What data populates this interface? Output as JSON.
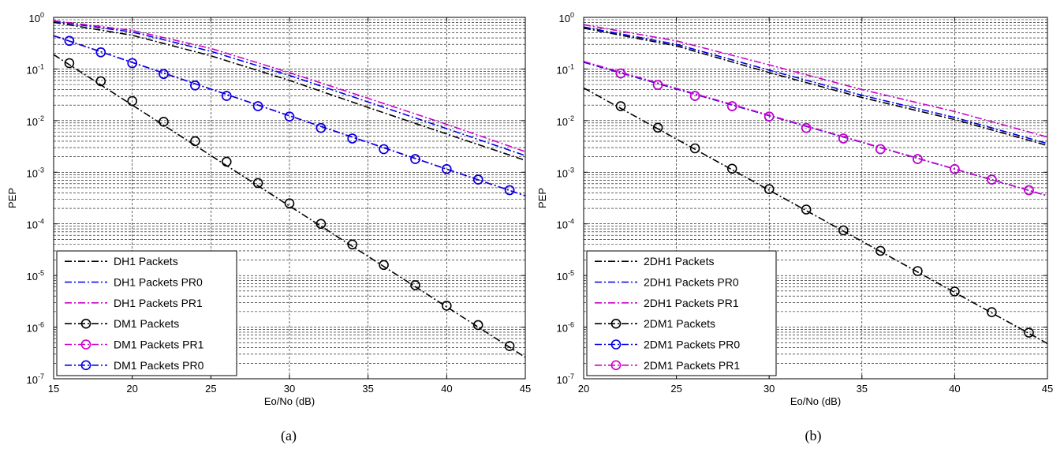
{
  "chart_data": [
    {
      "type": "line",
      "caption": "(a)",
      "xlabel": "Eo/No (dB)",
      "ylabel": "PEP",
      "xlim": [
        15,
        45
      ],
      "ylim": [
        1e-07,
        1
      ],
      "yscale": "log",
      "grid": true,
      "legend_position": "bottom-left",
      "xticks": [
        "15",
        "20",
        "25",
        "30",
        "35",
        "40",
        "45"
      ],
      "yticks": [
        {
          "base": "10",
          "exp": "0"
        },
        {
          "base": "10",
          "exp": "-1"
        },
        {
          "base": "10",
          "exp": "-2"
        },
        {
          "base": "10",
          "exp": "-3"
        },
        {
          "base": "10",
          "exp": "-4"
        },
        {
          "base": "10",
          "exp": "-5"
        },
        {
          "base": "10",
          "exp": "-6"
        },
        {
          "base": "10",
          "exp": "-7"
        }
      ],
      "series": [
        {
          "name": "DH1 Packets",
          "color": "#000000",
          "marker": "none",
          "x": [
            15,
            20,
            25,
            30,
            35,
            40,
            45
          ],
          "y": [
            0.8,
            0.45,
            0.18,
            0.06,
            0.018,
            0.0055,
            0.0017
          ]
        },
        {
          "name": "DH1 Packets PR0",
          "color": "#0000e6",
          "marker": "none",
          "x": [
            15,
            20,
            25,
            30,
            35,
            40,
            45
          ],
          "y": [
            0.84,
            0.52,
            0.22,
            0.075,
            0.023,
            0.007,
            0.0021
          ]
        },
        {
          "name": "DH1 Packets PR1",
          "color": "#cc00cc",
          "marker": "none",
          "x": [
            15,
            20,
            25,
            30,
            35,
            40,
            45
          ],
          "y": [
            0.86,
            0.56,
            0.25,
            0.085,
            0.027,
            0.0085,
            0.0025
          ]
        },
        {
          "name": "DM1 Packets",
          "color": "#000000",
          "marker": "circle",
          "x": [
            16,
            18,
            20,
            22,
            24,
            26,
            28,
            30,
            32,
            34,
            36,
            38,
            40,
            42,
            44
          ],
          "y": [
            0.13,
            0.058,
            0.024,
            0.0095,
            0.004,
            0.0016,
            0.00062,
            0.00025,
            0.0001,
            4e-05,
            1.6e-05,
            6.5e-06,
            2.6e-06,
            1.1e-06,
            4.3e-07
          ],
          "line_x": [
            15,
            45
          ],
          "line_y": [
            0.19,
            2.6e-07
          ]
        },
        {
          "name": "DM1 Packets PR1",
          "color": "#cc00cc",
          "marker": "circle",
          "x": [
            16,
            18,
            20,
            22,
            24,
            26,
            28,
            30,
            32,
            34,
            36,
            38,
            40,
            42,
            44
          ],
          "y": [
            0.35,
            0.21,
            0.13,
            0.08,
            0.048,
            0.03,
            0.019,
            0.012,
            0.0072,
            0.0045,
            0.0028,
            0.0018,
            0.00115,
            0.00072,
            0.00045
          ],
          "line_x": [
            15,
            45
          ],
          "line_y": [
            0.44,
            0.00035
          ]
        },
        {
          "name": "DM1 Packets PR0",
          "color": "#0000e6",
          "marker": "circle",
          "x": [
            16,
            18,
            20,
            22,
            24,
            26,
            28,
            30,
            32,
            34,
            36,
            38,
            40,
            42,
            44
          ],
          "y": [
            0.35,
            0.21,
            0.13,
            0.08,
            0.048,
            0.03,
            0.019,
            0.012,
            0.0072,
            0.0045,
            0.0028,
            0.0018,
            0.00115,
            0.00072,
            0.00045
          ],
          "line_x": [
            15,
            45
          ],
          "line_y": [
            0.44,
            0.00035
          ]
        }
      ]
    },
    {
      "type": "line",
      "caption": "(b)",
      "xlabel": "Eo/No (dB)",
      "ylabel": "PEP",
      "xlim": [
        20,
        45
      ],
      "ylim": [
        1e-07,
        1
      ],
      "yscale": "log",
      "grid": true,
      "legend_position": "bottom-left",
      "xticks": [
        "20",
        "25",
        "30",
        "35",
        "40",
        "45"
      ],
      "yticks": [
        {
          "base": "10",
          "exp": "0"
        },
        {
          "base": "10",
          "exp": "-1"
        },
        {
          "base": "10",
          "exp": "-2"
        },
        {
          "base": "10",
          "exp": "-3"
        },
        {
          "base": "10",
          "exp": "-4"
        },
        {
          "base": "10",
          "exp": "-5"
        },
        {
          "base": "10",
          "exp": "-6"
        },
        {
          "base": "10",
          "exp": "-7"
        }
      ],
      "series": [
        {
          "name": "2DH1 Packets",
          "color": "#000000",
          "marker": "none",
          "x": [
            20,
            25,
            30,
            35,
            40,
            45
          ],
          "y": [
            0.62,
            0.28,
            0.085,
            0.028,
            0.0105,
            0.0033
          ]
        },
        {
          "name": "2DH1 Packets PR0",
          "color": "#0000e6",
          "marker": "none",
          "x": [
            20,
            25,
            30,
            35,
            40,
            45
          ],
          "y": [
            0.65,
            0.3,
            0.095,
            0.031,
            0.0115,
            0.0036
          ]
        },
        {
          "name": "2DH1 Packets PR1",
          "color": "#cc00cc",
          "marker": "none",
          "x": [
            20,
            25,
            30,
            35,
            40,
            45
          ],
          "y": [
            0.72,
            0.35,
            0.12,
            0.04,
            0.015,
            0.0048
          ]
        },
        {
          "name": "2DM1 Packets",
          "color": "#000000",
          "marker": "circle",
          "x": [
            22,
            24,
            26,
            28,
            30,
            32,
            34,
            36,
            38,
            40,
            42,
            44
          ],
          "y": [
            0.019,
            0.0073,
            0.0029,
            0.00117,
            0.00047,
            0.00019,
            7.5e-05,
            3e-05,
            1.22e-05,
            4.9e-06,
            1.95e-06,
            7.8e-07
          ],
          "line_x": [
            20,
            45
          ],
          "line_y": [
            0.043,
            4.8e-07
          ]
        },
        {
          "name": "2DM1 Packets PR0",
          "color": "#0000e6",
          "marker": "circle",
          "x": [
            22,
            24,
            26,
            28,
            30,
            32,
            34,
            36,
            38,
            40,
            42,
            44
          ],
          "y": [
            0.082,
            0.049,
            0.03,
            0.019,
            0.012,
            0.0072,
            0.0045,
            0.0028,
            0.0018,
            0.00115,
            0.00072,
            0.00045
          ],
          "line_x": [
            20,
            45
          ],
          "line_y": [
            0.135,
            0.00035
          ]
        },
        {
          "name": "2DM1 Packets PR1",
          "color": "#cc00cc",
          "marker": "circle",
          "x": [
            22,
            24,
            26,
            28,
            30,
            32,
            34,
            36,
            38,
            40,
            42,
            44
          ],
          "y": [
            0.082,
            0.049,
            0.03,
            0.019,
            0.012,
            0.0072,
            0.0045,
            0.0028,
            0.0018,
            0.00115,
            0.00072,
            0.00045
          ],
          "line_x": [
            20,
            45
          ],
          "line_y": [
            0.14,
            0.00035
          ]
        }
      ]
    }
  ]
}
